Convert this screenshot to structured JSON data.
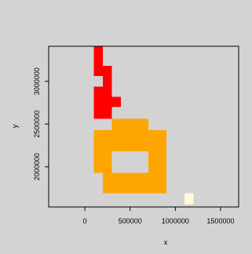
{
  "chart_data": {
    "type": "heatmap",
    "title": "",
    "xlabel": "x",
    "ylabel": "y",
    "xlim": [
      -400000,
      1700000
    ],
    "ylim": [
      1530000,
      3410000
    ],
    "x_ticks": [
      0,
      500000,
      1000000,
      1500000
    ],
    "x_tick_labels": [
      "0",
      "500000",
      "1000000",
      "1500000"
    ],
    "y_ticks": [
      2000000,
      2500000,
      3000000
    ],
    "y_tick_labels": [
      "2000000",
      "2500000",
      "3000000"
    ],
    "grid": false,
    "colors": {
      "red": "#ff0000",
      "orange": "#ffa500",
      "pale": "#fffadc",
      "panel_bg": "#d3d3d3",
      "plot_bg": "#d3d3d3"
    },
    "cells": [
      {
        "x0": 100000,
        "x1": 200000,
        "y0": 3300000,
        "y1": 3420000,
        "color": "red"
      },
      {
        "x0": 100000,
        "x1": 200000,
        "y0": 3180000,
        "y1": 3300000,
        "color": "red"
      },
      {
        "x0": 100000,
        "x1": 300000,
        "y0": 3060000,
        "y1": 3180000,
        "color": "red"
      },
      {
        "x0": 200000,
        "x1": 300000,
        "y0": 2940000,
        "y1": 3060000,
        "color": "red"
      },
      {
        "x0": 100000,
        "x1": 300000,
        "y0": 2820000,
        "y1": 2940000,
        "color": "red"
      },
      {
        "x0": 100000,
        "x1": 400000,
        "y0": 2700000,
        "y1": 2820000,
        "color": "red"
      },
      {
        "x0": 100000,
        "x1": 300000,
        "y0": 2560000,
        "y1": 2700000,
        "color": "red"
      },
      {
        "x0": 300000,
        "x1": 700000,
        "y0": 2430000,
        "y1": 2560000,
        "color": "orange"
      },
      {
        "x0": 100000,
        "x1": 900000,
        "y0": 2180000,
        "y1": 2430000,
        "color": "orange"
      },
      {
        "x0": 100000,
        "x1": 300000,
        "y0": 1930000,
        "y1": 2180000,
        "color": "orange"
      },
      {
        "x0": 700000,
        "x1": 900000,
        "y0": 1930000,
        "y1": 2180000,
        "color": "orange"
      },
      {
        "x0": 200000,
        "x1": 900000,
        "y0": 1690000,
        "y1": 1930000,
        "color": "orange"
      },
      {
        "x0": 1100000,
        "x1": 1200000,
        "y0": 1560000,
        "y1": 1690000,
        "color": "pale"
      }
    ]
  }
}
